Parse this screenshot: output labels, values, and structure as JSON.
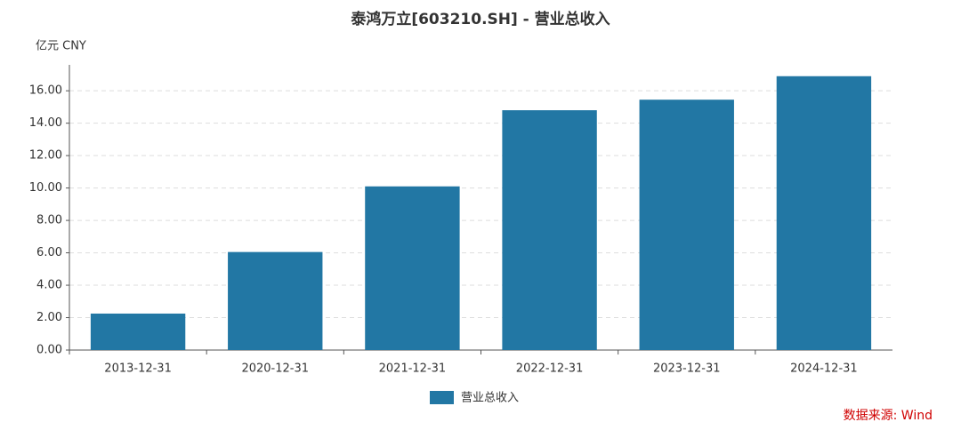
{
  "chart_data": {
    "type": "bar",
    "title": "泰鸿万立[603210.SH] - 营业总收入",
    "y_label": "亿元  CNY",
    "source": "数据来源: Wind",
    "categories": [
      "2013-12-31",
      "2020-12-31",
      "2021-12-31",
      "2022-12-31",
      "2023-12-31",
      "2024-12-31"
    ],
    "series": [
      {
        "name": "营业总收入",
        "color": "#2277a4",
        "values": [
          2.25,
          6.05,
          10.1,
          14.8,
          15.45,
          16.9
        ]
      }
    ],
    "ylim": [
      0,
      17.6
    ],
    "yticks": [
      {
        "value": 0,
        "label": "0.00"
      },
      {
        "value": 2,
        "label": "2.00"
      },
      {
        "value": 4,
        "label": "4.00"
      },
      {
        "value": 6,
        "label": "6.00"
      },
      {
        "value": 8,
        "label": "8.00"
      },
      {
        "value": 10,
        "label": "10.00"
      },
      {
        "value": 12,
        "label": "12.00"
      },
      {
        "value": 14,
        "label": "14.00"
      },
      {
        "value": 16,
        "label": "16.00"
      }
    ],
    "grid": true
  }
}
